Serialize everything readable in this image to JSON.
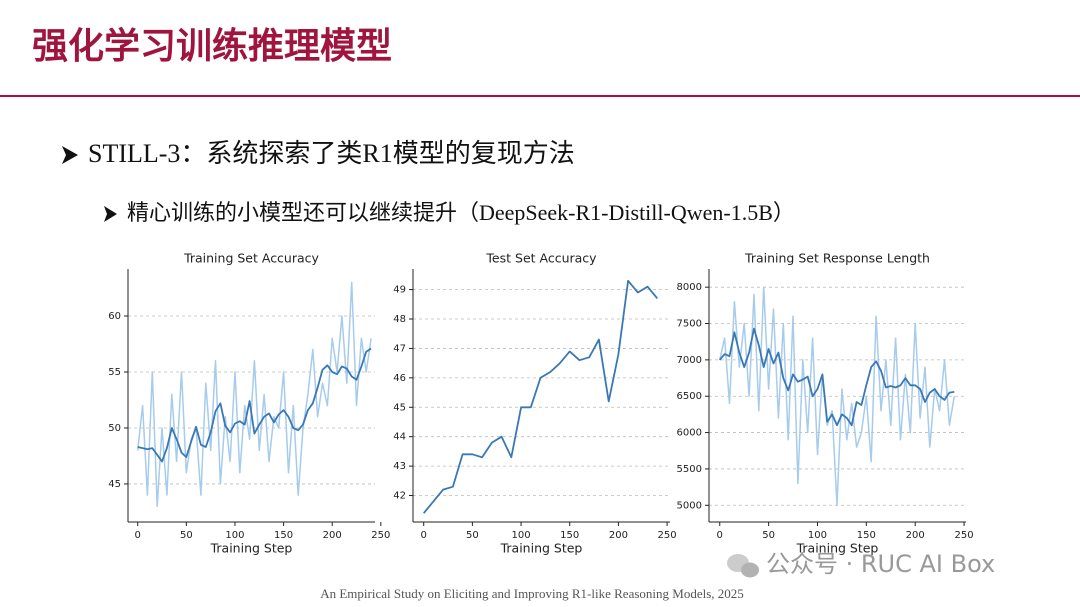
{
  "header": {
    "title": "强化学习训练推理模型"
  },
  "bullets": [
    "STILL-3：系统探索了类R1模型的复现方法",
    "精心训练的小模型还可以继续提升（DeepSeek-R1-Distill-Qwen-1.5B）"
  ],
  "footer": "An Empirical Study on Eliciting and Improving R1-like Reasoning Models, 2025",
  "watermark": "公众号 · RUC AI Box",
  "chart_data": [
    {
      "type": "line",
      "title": "Training Set Accuracy",
      "x_label": "Training Step",
      "x": [
        0,
        5,
        10,
        15,
        20,
        25,
        30,
        35,
        40,
        45,
        50,
        55,
        60,
        65,
        70,
        75,
        80,
        85,
        90,
        95,
        100,
        105,
        110,
        115,
        120,
        125,
        130,
        135,
        140,
        145,
        150,
        155,
        160,
        165,
        170,
        175,
        180,
        185,
        190,
        195,
        200,
        205,
        210,
        215,
        220,
        225,
        230,
        235,
        240
      ],
      "series": [
        {
          "color": "#a6cbec",
          "values": [
            48,
            52,
            44,
            55,
            43,
            50,
            44,
            53,
            47,
            55,
            46,
            49,
            50,
            44,
            54,
            48,
            56,
            45,
            51,
            47,
            55,
            46,
            52,
            49,
            56,
            48,
            53,
            47,
            51,
            50,
            55,
            46,
            52,
            44,
            50,
            53,
            57,
            51,
            54,
            52,
            58,
            55,
            60,
            54,
            63,
            52,
            58,
            55,
            58
          ]
        },
        {
          "color": "#3a78b5",
          "values": [
            48.3,
            48.2,
            48.1,
            48.2,
            47.6,
            47.0,
            48.2,
            50.0,
            49.0,
            47.8,
            47.4,
            48.8,
            50.1,
            48.5,
            48.3,
            49.6,
            51.5,
            52.2,
            50.2,
            49.6,
            50.4,
            50.6,
            50.3,
            52.4,
            49.5,
            50.3,
            51.0,
            51.3,
            50.5,
            51.2,
            51.6,
            51.0,
            50.0,
            49.8,
            50.3,
            51.6,
            52.2,
            53.6,
            55.2,
            55.6,
            55.0,
            54.8,
            55.5,
            55.3,
            54.6,
            54.3,
            55.5,
            56.8,
            57.1
          ]
        }
      ],
      "xlim": [
        -10,
        244
      ],
      "ylim": [
        41.6,
        64.2
      ],
      "xticks": [
        0,
        50,
        100,
        150,
        200,
        250
      ],
      "yticks": [
        45,
        50,
        55,
        60
      ],
      "grid": true
    },
    {
      "type": "line",
      "title": "Test Set Accuracy",
      "x_label": "Training Step",
      "x": [
        0,
        10,
        20,
        30,
        40,
        50,
        60,
        70,
        80,
        90,
        100,
        110,
        120,
        130,
        140,
        150,
        160,
        170,
        180,
        190,
        200,
        210,
        220,
        230,
        240
      ],
      "series": [
        {
          "color": "#3a78b5",
          "values": [
            41.4,
            41.8,
            42.2,
            42.3,
            43.4,
            43.4,
            43.3,
            43.8,
            44.0,
            43.3,
            45.0,
            45.0,
            46.0,
            46.2,
            46.5,
            46.9,
            46.6,
            46.7,
            47.3,
            45.2,
            46.8,
            49.3,
            48.9,
            49.1,
            48.7
          ]
        }
      ],
      "xlim": [
        -11,
        253
      ],
      "ylim": [
        41.1,
        49.7
      ],
      "xticks": [
        0,
        50,
        100,
        150,
        200,
        250
      ],
      "yticks": [
        42,
        43,
        44,
        45,
        46,
        47,
        48,
        49
      ],
      "grid": true
    },
    {
      "type": "line",
      "title": "Training Set Response Length",
      "x_label": "Training Step",
      "x": [
        0,
        5,
        10,
        15,
        20,
        25,
        30,
        35,
        40,
        45,
        50,
        55,
        60,
        65,
        70,
        75,
        80,
        85,
        90,
        95,
        100,
        105,
        110,
        115,
        120,
        125,
        130,
        135,
        140,
        145,
        150,
        155,
        160,
        165,
        170,
        175,
        180,
        185,
        190,
        195,
        200,
        205,
        210,
        215,
        220,
        225,
        230,
        235,
        240
      ],
      "series": [
        {
          "color": "#a6cbec",
          "values": [
            7000,
            7300,
            6400,
            7800,
            6900,
            7500,
            6500,
            7900,
            6300,
            8000,
            6600,
            7700,
            6200,
            7500,
            5900,
            7600,
            5300,
            7000,
            6000,
            7300,
            5700,
            6800,
            6100,
            6300,
            5000,
            6600,
            5900,
            6400,
            5800,
            6000,
            6500,
            5600,
            7600,
            6300,
            7000,
            6100,
            7300,
            5900,
            6800,
            6000,
            7500,
            6200,
            6900,
            5800,
            6600,
            6300,
            7000,
            6100,
            6500
          ]
        },
        {
          "color": "#3a78b5",
          "values": [
            7000,
            7080,
            7050,
            7380,
            7100,
            6900,
            7100,
            7430,
            7200,
            6900,
            7150,
            6950,
            7100,
            6750,
            6580,
            6800,
            6700,
            6730,
            6770,
            6500,
            6600,
            6800,
            6150,
            6250,
            6100,
            6250,
            6200,
            6100,
            6420,
            6380,
            6650,
            6900,
            6980,
            6850,
            6620,
            6640,
            6620,
            6650,
            6750,
            6650,
            6650,
            6600,
            6420,
            6550,
            6600,
            6500,
            6450,
            6550,
            6560
          ]
        }
      ],
      "xlim": [
        -11,
        252
      ],
      "ylim": [
        4770,
        8250
      ],
      "xticks": [
        0,
        50,
        100,
        150,
        200,
        250
      ],
      "yticks": [
        5000,
        5500,
        6000,
        6500,
        7000,
        7500,
        8000
      ],
      "grid": true
    }
  ]
}
